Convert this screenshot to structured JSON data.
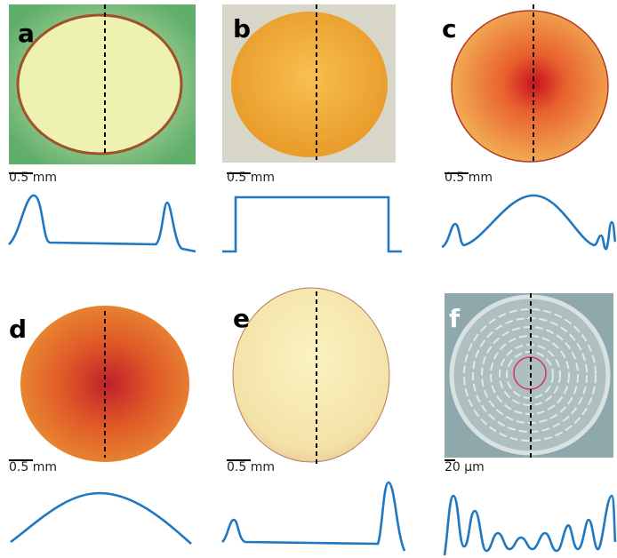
{
  "panels": [
    {
      "label": "a",
      "scale": "0.5 mm"
    },
    {
      "label": "b",
      "scale": "0.5 mm"
    },
    {
      "label": "c",
      "scale": "0.5 mm"
    },
    {
      "label": "d",
      "scale": "0.5 mm"
    },
    {
      "label": "e",
      "scale": "0.5 mm"
    },
    {
      "label": "f",
      "scale": "20 µm"
    }
  ]
}
